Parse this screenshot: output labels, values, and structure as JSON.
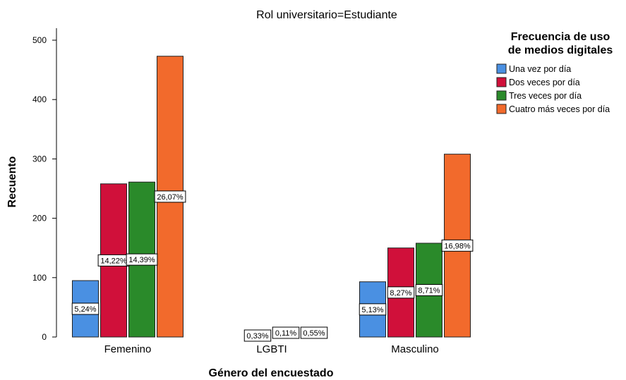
{
  "chart_data": {
    "type": "bar",
    "title": "Rol universitario=Estudiante",
    "xlabel": "Género del encuestado",
    "ylabel": "Recuento",
    "categories": [
      "Femenino",
      "LGBTI",
      "Masculino"
    ],
    "ylim": [
      0,
      500
    ],
    "yticks": [
      "0",
      "100",
      "200",
      "300",
      "400",
      "500"
    ],
    "grid": false,
    "legend": {
      "title_lines": [
        "Frecuencia de uso",
        "de medios digitales"
      ],
      "position": "right"
    },
    "series": [
      {
        "name": "Una vez por día",
        "color": "#4a90e2",
        "values": [
          95,
          0,
          93
        ],
        "labels": [
          "5,24%",
          "",
          "5,13%"
        ]
      },
      {
        "name": "Dos veces por día",
        "color": "#d0103a",
        "values": [
          258,
          6,
          150
        ],
        "labels": [
          "14,22%",
          "0,33%",
          "8,27%"
        ]
      },
      {
        "name": "Tres veces por día",
        "color": "#2a8a2a",
        "values": [
          261,
          2,
          158
        ],
        "labels": [
          "14,39%",
          "0,11%",
          "8,71%"
        ]
      },
      {
        "name": "Cuatro más veces por día",
        "color": "#f26a2c",
        "values": [
          473,
          10,
          308
        ],
        "labels": [
          "26,07%",
          "0,55%",
          "16,98%"
        ]
      }
    ]
  }
}
